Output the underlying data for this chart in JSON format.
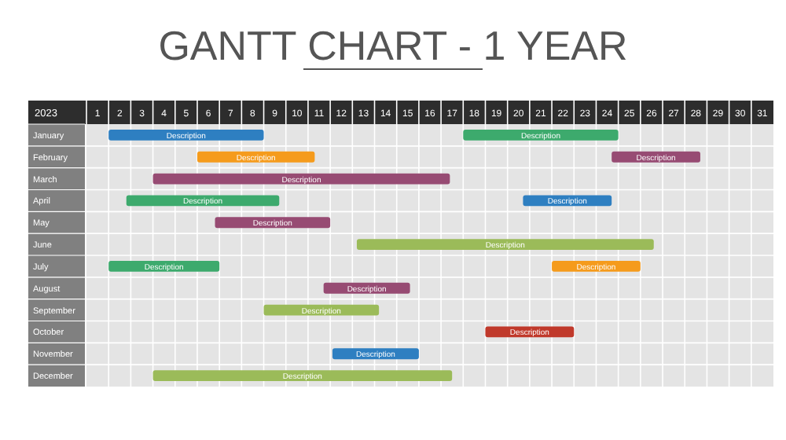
{
  "chart_data": {
    "type": "bar",
    "orientation": "horizontal",
    "title": "GANTT CHART - 1 YEAR",
    "ylabel": "2023",
    "categories": [
      "January",
      "February",
      "March",
      "April",
      "May",
      "June",
      "July",
      "August",
      "September",
      "October",
      "November",
      "December"
    ],
    "xlim": [
      0.5,
      31.5
    ],
    "xticks": [
      1,
      2,
      3,
      4,
      5,
      6,
      7,
      8,
      9,
      10,
      11,
      12,
      13,
      14,
      15,
      16,
      17,
      18,
      19,
      20,
      21,
      22,
      23,
      24,
      25,
      26,
      27,
      28,
      29,
      30,
      31
    ],
    "grid": true,
    "series": [
      {
        "base": [
          1.5,
          5.5,
          3.5,
          2.3,
          6.3,
          12.7,
          1.5,
          11.2,
          8.5,
          18.5,
          11.6,
          3.5
        ],
        "values": [
          7,
          5.3,
          13.4,
          6.9,
          5.2,
          13.4,
          5,
          3.9,
          5.2,
          4,
          3.9,
          13.5
        ],
        "colors": [
          "#2e7fc1",
          "#f59b1c",
          "#974b73",
          "#3daa6d",
          "#974b73",
          "#9bbb59",
          "#3daa6d",
          "#974b73",
          "#9bbb59",
          "#c0392b",
          "#2e7fc1",
          "#9bbb59"
        ],
        "value_labels": [
          "Description",
          "Description",
          "Description",
          "Description",
          "Description",
          "Description",
          "Description",
          "Description",
          "Description",
          "Description",
          "Description",
          "Description"
        ]
      },
      {
        "base": [
          17.5,
          24.2,
          null,
          20.2,
          null,
          null,
          21.5,
          null,
          null,
          null,
          null,
          null
        ],
        "values": [
          7,
          4,
          null,
          4,
          null,
          null,
          4,
          null,
          null,
          null,
          null,
          null
        ],
        "colors": [
          "#3daa6d",
          "#974b73",
          null,
          "#2e7fc1",
          null,
          null,
          "#f59b1c",
          null,
          null,
          null,
          null,
          null
        ],
        "value_labels": [
          "Description",
          "Description",
          null,
          "Description",
          null,
          null,
          "Description",
          null,
          null,
          null,
          null,
          null
        ]
      }
    ]
  }
}
